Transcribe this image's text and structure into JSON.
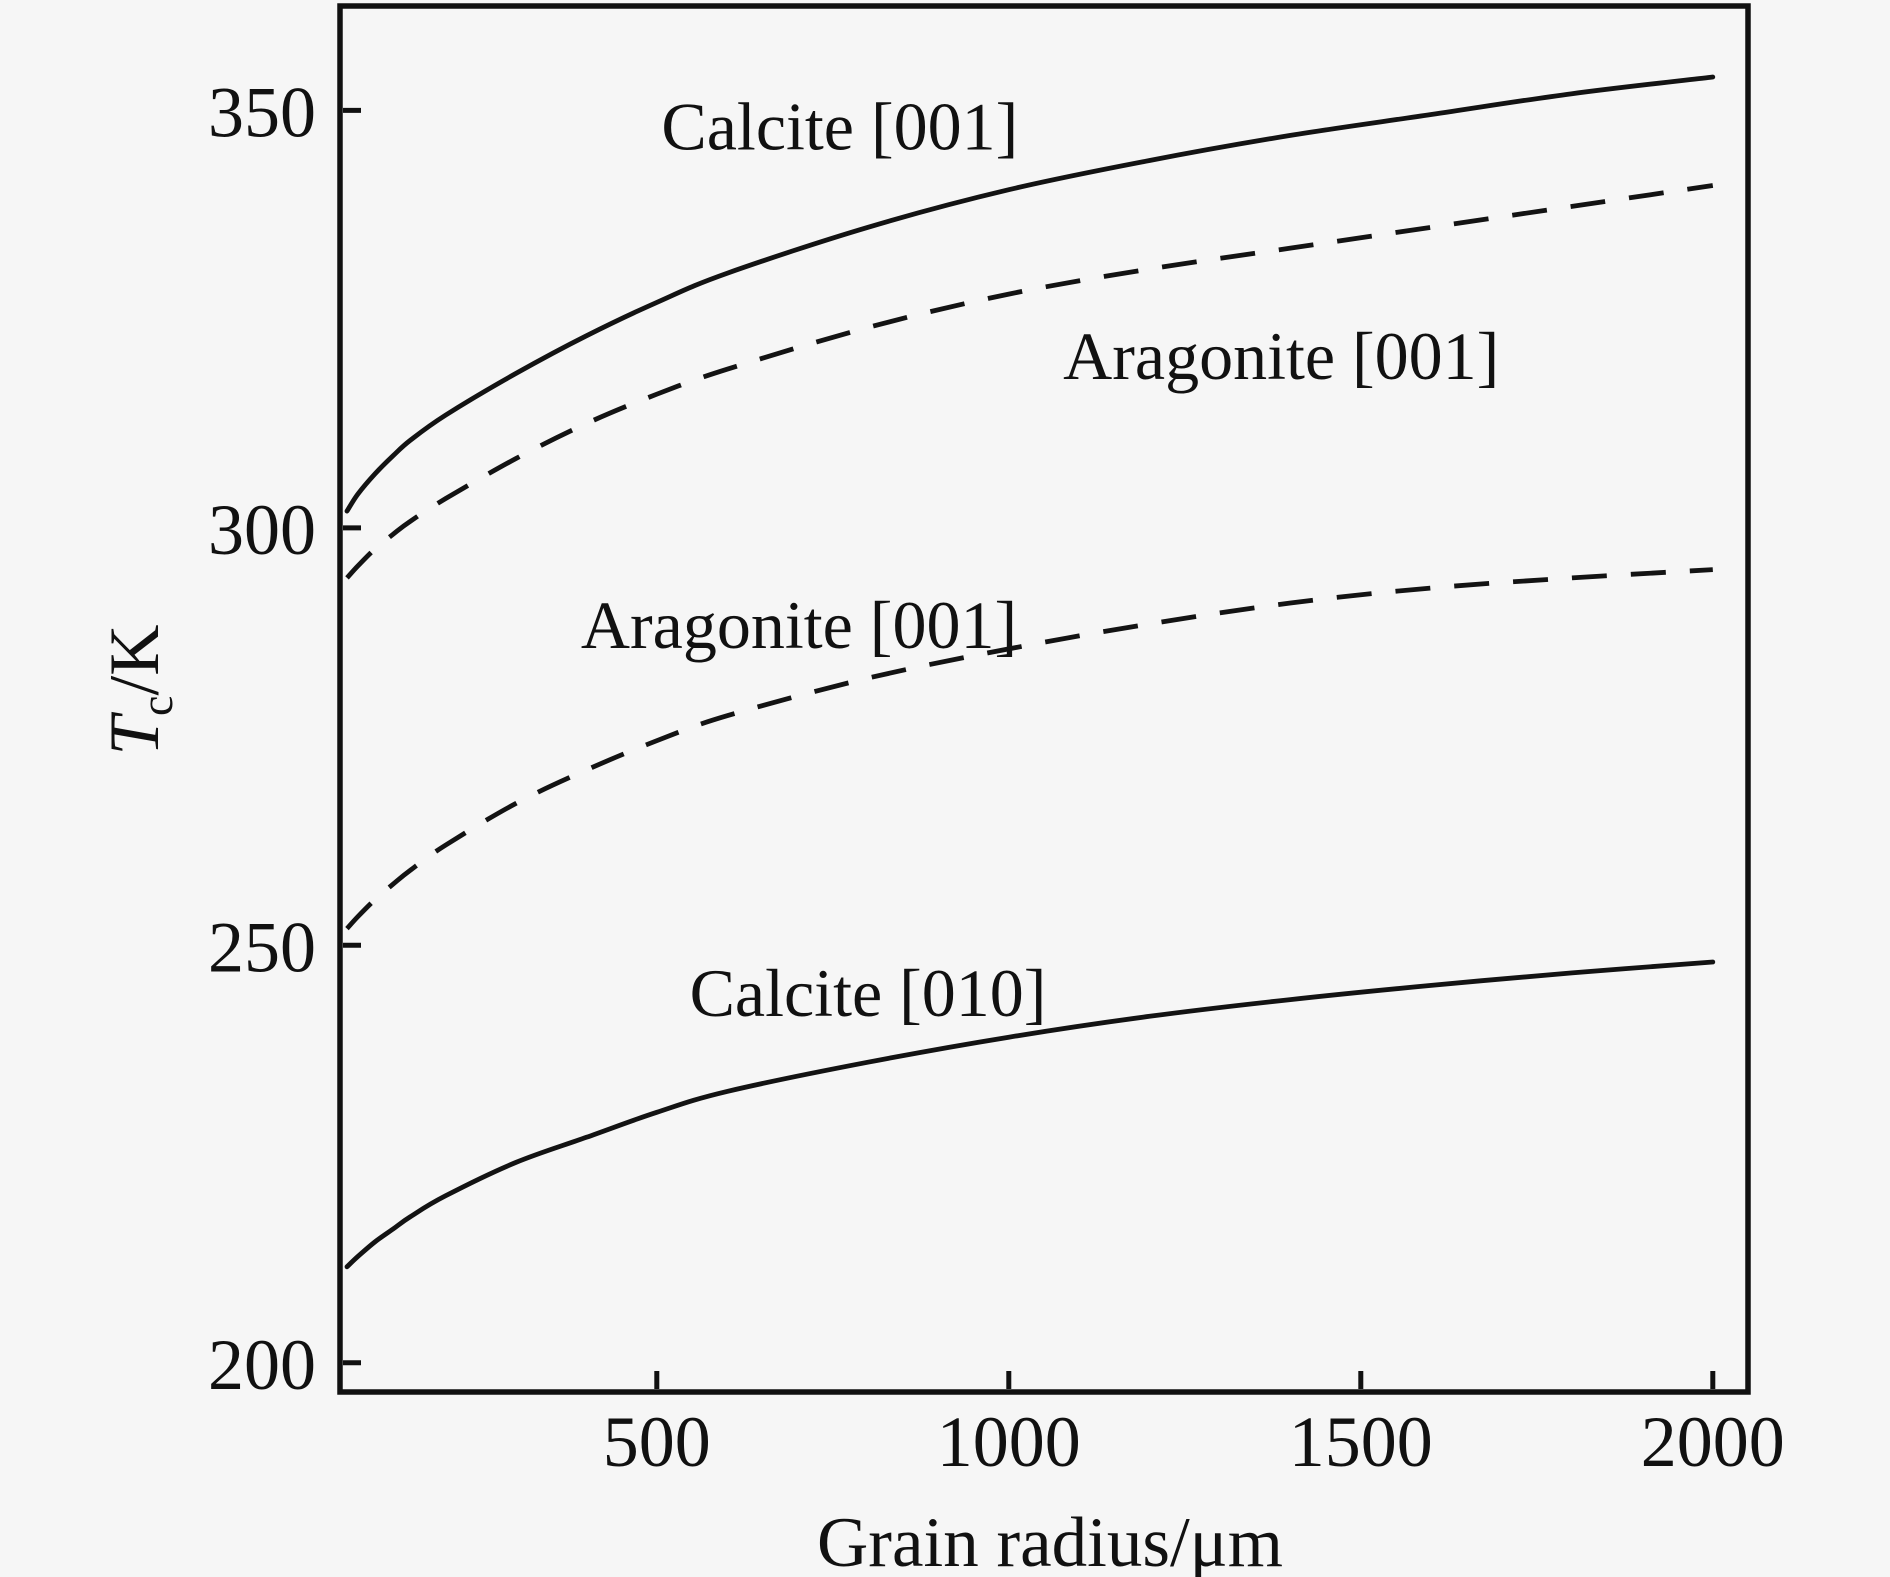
{
  "figure": {
    "background": "#f6f6f6",
    "line_color": "#131313",
    "frame_color": "#111111"
  },
  "labels": {
    "x_axis": "Grain radius/μm",
    "y_symbol": "T",
    "y_sub": "c",
    "y_unit": "/K"
  },
  "chart_data": {
    "type": "line",
    "title": "",
    "xlabel": "Grain radius/μm",
    "ylabel": "Tc/K",
    "xlim": [
      50,
      2050
    ],
    "ylim": [
      196.5,
      362.5
    ],
    "xticks": [
      500,
      1000,
      1500,
      2000
    ],
    "yticks": [
      200,
      250,
      300,
      350
    ],
    "grid": false,
    "legend_position": "inline-annotations",
    "series": [
      {
        "id": "calcite-001",
        "name": "Calcite [001]",
        "style": "solid",
        "x": [
          60,
          75,
          100,
          125,
          150,
          200,
          300,
          400,
          500,
          600,
          800,
          1000,
          1200,
          1400,
          1600,
          1800,
          2000
        ],
        "y": [
          302.0,
          304.0,
          306.5,
          308.6,
          310.5,
          313.5,
          318.5,
          323.0,
          327.0,
          330.5,
          336.0,
          340.5,
          344.0,
          347.0,
          349.5,
          352.0,
          354.0
        ]
      },
      {
        "id": "aragonite-001-upper",
        "name": "Aragonite [001]",
        "style": "dashed",
        "x": [
          60,
          75,
          100,
          125,
          150,
          200,
          300,
          400,
          500,
          600,
          800,
          1000,
          1200,
          1400,
          1600,
          1800,
          2000
        ],
        "y": [
          294.0,
          295.4,
          297.5,
          299.2,
          300.8,
          303.5,
          308.3,
          312.5,
          316.0,
          319.0,
          324.0,
          328.0,
          331.0,
          333.5,
          336.0,
          338.5,
          341.0
        ]
      },
      {
        "id": "aragonite-001-lower",
        "name": "Aragonite [001]",
        "style": "dashed",
        "x": [
          60,
          75,
          100,
          125,
          150,
          200,
          300,
          400,
          500,
          600,
          800,
          1000,
          1200,
          1400,
          1600,
          1800,
          2000
        ],
        "y": [
          252.0,
          253.4,
          255.5,
          257.3,
          259.0,
          262.0,
          267.0,
          271.0,
          274.5,
          277.5,
          282.0,
          285.5,
          288.5,
          291.0,
          292.8,
          294.0,
          295.0
        ]
      },
      {
        "id": "calcite-010",
        "name": "Calcite [010]",
        "style": "solid",
        "x": [
          60,
          75,
          100,
          125,
          150,
          200,
          300,
          400,
          500,
          600,
          800,
          1000,
          1200,
          1400,
          1600,
          1800,
          2000
        ],
        "y": [
          211.5,
          212.7,
          214.5,
          216.0,
          217.5,
          220.0,
          224.0,
          227.0,
          230.0,
          232.5,
          236.0,
          239.0,
          241.5,
          243.5,
          245.2,
          246.7,
          248.0
        ]
      }
    ],
    "annotations": [
      {
        "id": "calcite-001",
        "text": "Calcite [001]",
        "r": 760,
        "T": 348.2
      },
      {
        "id": "aragonite-001-upper",
        "text": "Aragonite [001]",
        "r": 1387,
        "T": 320.7
      },
      {
        "id": "aragonite-001-lower",
        "text": "Aragonite [001]",
        "r": 702,
        "T": 288.5
      },
      {
        "id": "calcite-010",
        "text": "Calcite [010]",
        "r": 800,
        "T": 244.4
      }
    ]
  }
}
